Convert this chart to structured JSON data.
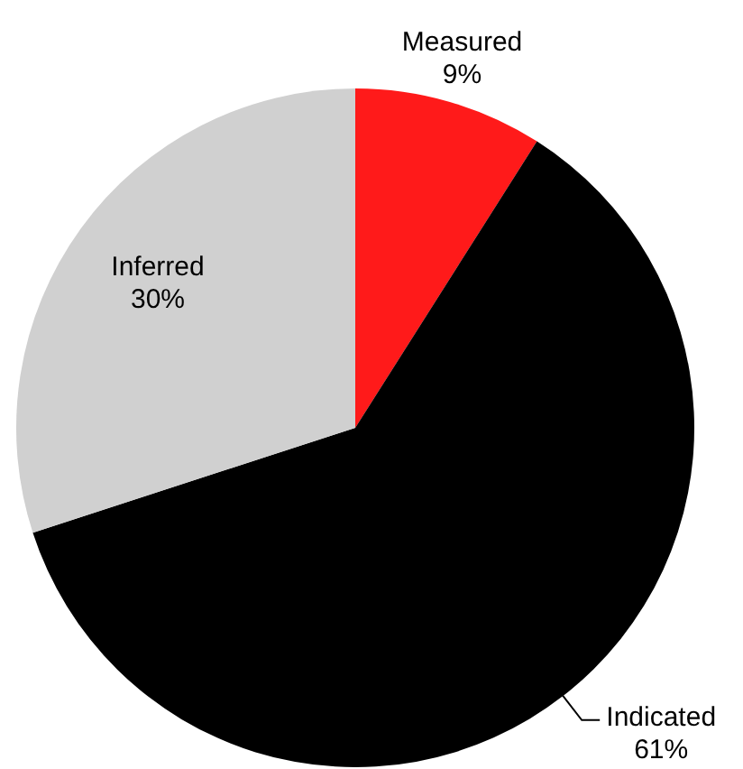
{
  "chart_data": {
    "type": "pie",
    "categories": [
      "Measured",
      "Indicated",
      "Inferred"
    ],
    "values": [
      9,
      61,
      30
    ],
    "colors": [
      "#ff1a1a",
      "#000000",
      "#d0d0d0"
    ],
    "value_labels": [
      "9%",
      "61%",
      "30%"
    ],
    "legend": false
  }
}
